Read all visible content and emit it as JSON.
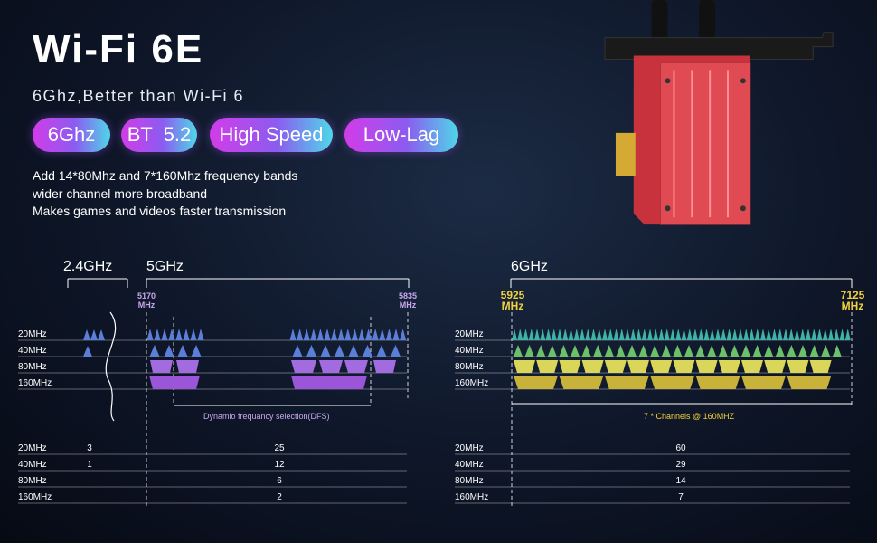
{
  "header": {
    "title": "Wi-Fi 6E",
    "subtitle": "6Ghz,Better than Wi-Fi 6"
  },
  "pills": [
    "6Ghz",
    "BT  5.2",
    "High Speed",
    "Low-Lag"
  ],
  "features": [
    "Add 14*80Mhz and 7*160Mhz frequency bands",
    "wider channel more broadband",
    "Makes games and videos faster transmission"
  ],
  "band5": {
    "label_24": "2.4GHz",
    "label_5": "5GHz",
    "freq_start": [
      "5170",
      "MHz"
    ],
    "freq_end": [
      "5835",
      "MHz"
    ],
    "note": "Dynamlo frequancy selection(DFS)"
  },
  "band6": {
    "label": "6GHz",
    "freq_start": [
      "5925",
      "MHz"
    ],
    "freq_end": [
      "7125",
      "MHz"
    ],
    "note": "7 * Channels @ 160MHZ"
  },
  "widths": [
    "20MHz",
    "40MHz",
    "80MHz",
    "160MHz"
  ],
  "channel_counts": {
    "ghz24": [
      "3",
      "1",
      "",
      ""
    ],
    "ghz5": [
      "25",
      "12",
      "6",
      "2"
    ],
    "ghz6": [
      "60",
      "29",
      "14",
      "7"
    ]
  },
  "colors": {
    "blue_tri": "#5b7fd8",
    "purple_trap": "#a36be0",
    "teal_tri": "#3fb3a8",
    "green_tri": "#6cc06a",
    "yellow": "#d9d65a",
    "gold": "#c9b23a",
    "freq6": "#f0d23c",
    "card_red": "#d8454e"
  },
  "icons": {
    "card": "wifi-pcie-card-icon"
  }
}
